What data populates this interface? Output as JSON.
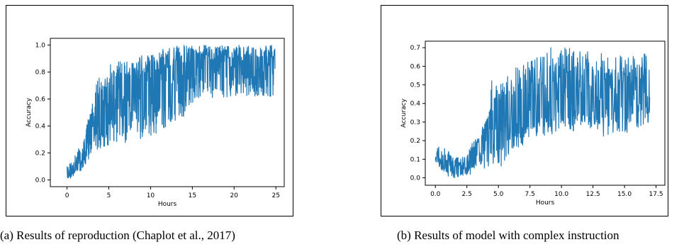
{
  "captions": {
    "a": "(a) Results of reproduction (Chaplot et al., 2017)",
    "b": "(b) Results of model with complex instruction"
  },
  "chart_data": [
    {
      "type": "line",
      "id": "a",
      "xlabel": "Hours",
      "ylabel": "Accuracy",
      "xlim": [
        -2,
        26
      ],
      "ylim": [
        -0.05,
        1.05
      ],
      "xticks": [
        0,
        5,
        10,
        15,
        20,
        25
      ],
      "xtick_labels": [
        "0",
        "5",
        "10",
        "15",
        "20",
        "25"
      ],
      "yticks": [
        0.0,
        0.2,
        0.4,
        0.6,
        0.8,
        1.0
      ],
      "ytick_labels": [
        "0.0",
        "0.2",
        "0.4",
        "0.6",
        "0.8",
        "1.0"
      ],
      "color": "#1f77b4",
      "grid": false,
      "x_range": [
        0,
        24.9
      ],
      "band_upper": [
        [
          0,
          0.1
        ],
        [
          1,
          0.2
        ],
        [
          2,
          0.32
        ],
        [
          3,
          0.58
        ],
        [
          3.5,
          0.75
        ],
        [
          5,
          0.85
        ],
        [
          6,
          0.88
        ],
        [
          8,
          0.92
        ],
        [
          10,
          0.97
        ],
        [
          12,
          0.98
        ],
        [
          14,
          1.0
        ],
        [
          16,
          1.0
        ],
        [
          24.9,
          1.0
        ]
      ],
      "band_lower": [
        [
          0,
          0.0
        ],
        [
          1,
          0.03
        ],
        [
          2,
          0.08
        ],
        [
          3,
          0.2
        ],
        [
          5,
          0.26
        ],
        [
          8,
          0.28
        ],
        [
          10,
          0.32
        ],
        [
          12,
          0.4
        ],
        [
          14,
          0.47
        ],
        [
          15,
          0.56
        ],
        [
          16,
          0.6
        ],
        [
          20,
          0.62
        ],
        [
          24.9,
          0.62
        ]
      ],
      "band_center": [
        [
          0,
          0.04
        ],
        [
          1,
          0.1
        ],
        [
          2,
          0.2
        ],
        [
          3,
          0.42
        ],
        [
          5,
          0.6
        ],
        [
          8,
          0.66
        ],
        [
          10,
          0.7
        ],
        [
          12,
          0.76
        ],
        [
          14,
          0.8
        ],
        [
          16,
          0.86
        ],
        [
          20,
          0.85
        ],
        [
          24.9,
          0.86
        ]
      ]
    },
    {
      "type": "line",
      "id": "b",
      "xlabel": "Hours",
      "ylabel": "Accuracy",
      "xlim": [
        -0.8,
        18.2
      ],
      "ylim": [
        -0.04,
        0.735
      ],
      "xticks": [
        0.0,
        2.5,
        5.0,
        7.5,
        10.0,
        12.5,
        15.0,
        17.5
      ],
      "xtick_labels": [
        "0.0",
        "2.5",
        "5.0",
        "7.5",
        "10.0",
        "12.5",
        "15.0",
        "17.5"
      ],
      "yticks": [
        0.0,
        0.1,
        0.2,
        0.3,
        0.4,
        0.5,
        0.6,
        0.7
      ],
      "ytick_labels": [
        "0.0",
        "0.1",
        "0.2",
        "0.3",
        "0.4",
        "0.5",
        "0.6",
        "0.7"
      ],
      "color": "#1f77b4",
      "grid": false,
      "x_range": [
        0,
        17.0
      ],
      "band_upper": [
        [
          0,
          0.18
        ],
        [
          1,
          0.15
        ],
        [
          2,
          0.1
        ],
        [
          2.5,
          0.14
        ],
        [
          3.5,
          0.25
        ],
        [
          4.2,
          0.33
        ],
        [
          4.5,
          0.55
        ],
        [
          5,
          0.52
        ],
        [
          6,
          0.58
        ],
        [
          8,
          0.65
        ],
        [
          9,
          0.7
        ],
        [
          11,
          0.7
        ],
        [
          14,
          0.66
        ],
        [
          17,
          0.67
        ]
      ],
      "band_lower": [
        [
          0,
          0.08
        ],
        [
          1,
          0.0
        ],
        [
          2,
          0.0
        ],
        [
          2.5,
          0.01
        ],
        [
          3.5,
          0.04
        ],
        [
          4.5,
          0.07
        ],
        [
          5,
          0.03
        ],
        [
          6,
          0.15
        ],
        [
          8,
          0.2
        ],
        [
          10,
          0.24
        ],
        [
          12,
          0.23
        ],
        [
          14,
          0.22
        ],
        [
          17,
          0.28
        ]
      ],
      "band_center": [
        [
          0,
          0.12
        ],
        [
          1,
          0.07
        ],
        [
          2,
          0.05
        ],
        [
          2.5,
          0.06
        ],
        [
          3.5,
          0.15
        ],
        [
          4.5,
          0.3
        ],
        [
          5,
          0.28
        ],
        [
          6,
          0.35
        ],
        [
          8,
          0.4
        ],
        [
          10,
          0.43
        ],
        [
          12,
          0.45
        ],
        [
          14,
          0.43
        ],
        [
          17,
          0.45
        ]
      ]
    }
  ]
}
